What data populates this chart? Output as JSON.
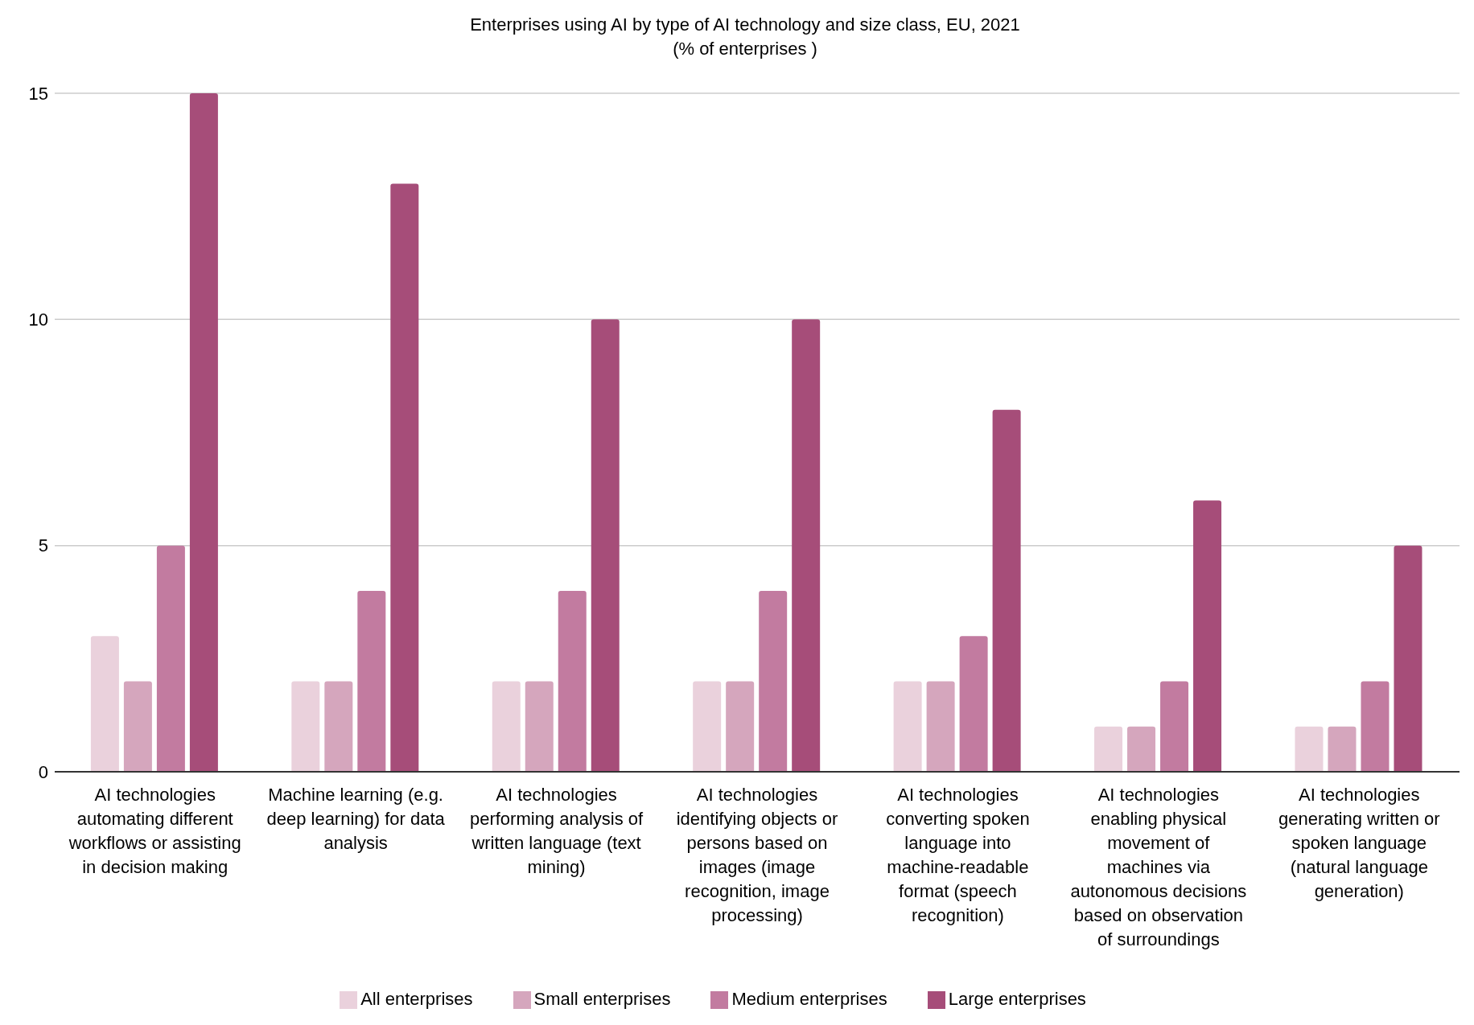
{
  "chart_data": {
    "type": "bar",
    "title": "Enterprises using AI by type of AI technology and size class, EU, 2021",
    "subtitle": "(% of enterprises )",
    "categories": [
      "AI technologies automating different workflows or assisting in decision making",
      "Machine learning (e.g. deep learning) for data analysis",
      "AI technologies performing analysis of written language (text mining)",
      "AI technologies identifying objects or persons based on images (image recognition, image processing)",
      "AI technologies converting spoken language into machine-readable format (speech recognition)",
      "AI technologies enabling physical movement of machines via autonomous decisions based on observation of surroundings",
      "AI technologies generating written or spoken language (natural language generation)"
    ],
    "series": [
      {
        "name": "All enterprises",
        "color": "#ead1dc",
        "values": [
          3,
          2,
          2,
          2,
          2,
          1,
          1
        ]
      },
      {
        "name": "Small enterprises",
        "color": "#d5a6bd",
        "values": [
          2,
          2,
          2,
          2,
          2,
          1,
          1
        ]
      },
      {
        "name": "Medium enterprises",
        "color": "#c27ba0",
        "values": [
          5,
          4,
          4,
          4,
          3,
          2,
          2
        ]
      },
      {
        "name": "Large enterprises",
        "color": "#a64d79",
        "values": [
          15,
          13,
          10,
          10,
          8,
          6,
          5
        ]
      }
    ],
    "ylim": [
      0,
      15
    ],
    "yticks": [
      0,
      5,
      10,
      15
    ],
    "grid": "y",
    "legend": "bottom"
  }
}
